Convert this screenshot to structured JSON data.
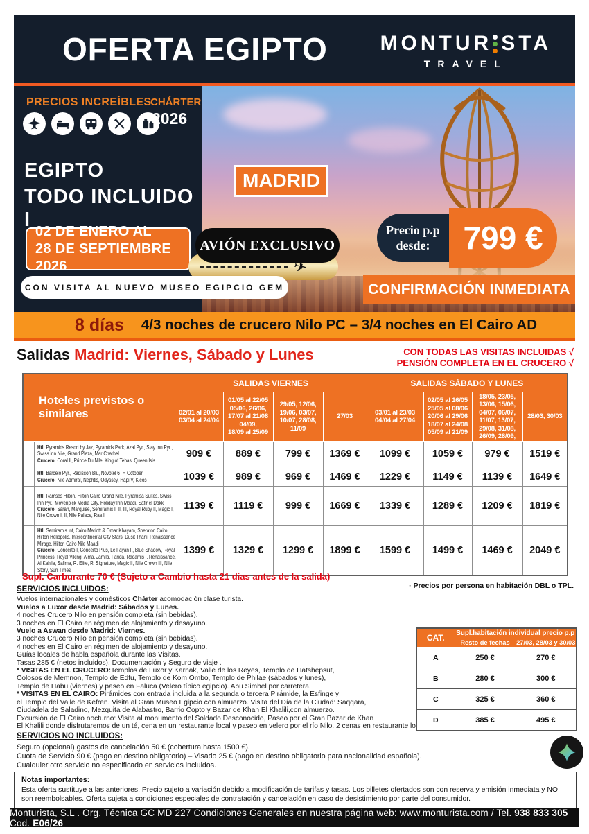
{
  "header": {
    "title": "OFERTA EGIPTO",
    "brand_part1": "MONTUR",
    "brand_part2": "STA",
    "brand_sub": "TRAVEL"
  },
  "hero": {
    "precios": "PRECIOS INCREÍBLES",
    "charter": "CHÁRTER",
    "year": "2026",
    "icon_names": [
      "plane-icon",
      "bed-icon",
      "bus-icon",
      "cutlery-icon",
      "luggage-icon"
    ],
    "headline_line1": "EGIPTO",
    "headline_line2": "TODO INCLUIDO I",
    "city_badge": "MADRID",
    "dates_line1": "02 DE ENERO AL",
    "dates_line2": "28 DE SEPTIEMBRE 2026",
    "avion": "AVIÓN EXCLUSIVO",
    "plane_glyph": "✈",
    "museo": "CON VISITA AL NUEVO MUSEO EGIPCIO GEM",
    "price_label_line1": "Precio p.p",
    "price_label_line2": "desde:",
    "price": "799 €",
    "confirm": "CONFIRMACIÓN INMEDIATA"
  },
  "duration_bar": {
    "days": "8 días",
    "description": "4/3 noches de crucero Nilo PC – 3/4 noches en El Cairo AD"
  },
  "salidas": {
    "label": "Salidas ",
    "value": "Madrid: Viernes, Sábado y Lunes",
    "note1": "CON TODAS LAS VISITAS INCLUIDAS √",
    "note2": "PENSIÓN COMPLETA EN EL CRUCERO √"
  },
  "price_table": {
    "hotel_header": "Hoteles previstos o similares",
    "group1": "SALIDAS VIERNES",
    "group2": "SALIDAS SÁBADO Y LUNES",
    "columns": [
      "02/01 al 20/03\n03/04 al 24/04",
      "01/05 al 22/05\n05/06, 26/06,\n17/07 al 21/08\n04/09,\n18/09 al 25/09",
      "29/05, 12/06,\n19/06, 03/07,\n10/07, 28/08,\n11/09",
      "27/03",
      "03/01 al 23/03\n04/04 al 27/04",
      "02/05 al 16/05\n25/05 al 08/06\n20/06 al 29/06\n18/07 al 24/08\n05/09 al 21/09",
      "18/05, 23/05,\n13/06, 15/06,\n04/07, 06/07,\n11/07, 13/07,\n29/08, 31/08,\n26/09, 28/09,",
      "28/03, 30/03"
    ],
    "rows": [
      {
        "cat": "A",
        "htl": [
          {
            "t": "Htl:",
            "b": 1
          },
          {
            "t": " Pyramids Resort by Jaz, Pyramids Park, Azal Pyr., Stay Inn Pyr., Swiss inn Nile, Grand Plaza, Mar Charbel"
          }
        ],
        "crucero": [
          {
            "t": "Crucero:",
            "b": 1
          },
          {
            "t": " Coral II, Prince Du Nile, King of Tebas, Queen Isis"
          }
        ],
        "prices": [
          "909 €",
          "889 €",
          "799 €",
          "1369 €",
          "1099 €",
          "1059 €",
          "979 €",
          "1519 €"
        ]
      },
      {
        "cat": "B",
        "htl": [
          {
            "t": "Htl:",
            "b": 1
          },
          {
            "t": " Barcelo Pyr., Radisson Blu, Novotel 6TH October"
          }
        ],
        "crucero": [
          {
            "t": "Crucero:",
            "b": 1
          },
          {
            "t": " Nile Admiral, Nephtis, Odyssey, Hapi V,  Kleos"
          }
        ],
        "prices": [
          "1039 €",
          "989 €",
          "969 €",
          "1469 €",
          "1229 €",
          "1149 €",
          "1139 €",
          "1649 €"
        ]
      },
      {
        "cat": "C",
        "htl": [
          {
            "t": "Htl:",
            "b": 1
          },
          {
            "t": " Ramses Hilton, Hilton Cairo Grand Nile, Pyramisa Suites, Swiss Inn Pyr., Movenpick Media City, Holiday Inn Maadi, Safir el Dokki"
          }
        ],
        "crucero": [
          {
            "t": "Crucero:",
            "b": 1
          },
          {
            "t": " Sarah, Marquise, Semiramis I, II, III, Royal Ruby II, Magic I, Nile Crown I, II, Nile Palace, Raa I"
          }
        ],
        "prices": [
          "1139 €",
          "1119 €",
          "999 €",
          "1669 €",
          "1339 €",
          "1289 €",
          "1209 €",
          "1819 €"
        ]
      },
      {
        "cat": "D",
        "htl": [
          {
            "t": "Htl:",
            "b": 1
          },
          {
            "t": " Semiramis Int, Cairo Mariott & Omar Khayam, Sheraton Cairo, Hilton Heliopolis, Intercontinental City Stars, Dusit Thani, Renaissance Mirage, Hilton Cairo Nile Maadi"
          }
        ],
        "crucero": [
          {
            "t": "Crucero:",
            "b": 1
          },
          {
            "t": " Concerto I, Concerto Plus, Le Fayan II, Blue Shadow, Royal Princess, Royal Viking, Alma, Jamila, Farida, Radamis I, Renaissance, Al Kahila, Salima, R. Elite, R. Signature, Magic II, Nile Crown III, Nile Story, Sun Times"
          }
        ],
        "prices": [
          "1399 €",
          "1329 €",
          "1299 €",
          "1899 €",
          "1599 €",
          "1499 €",
          "1469 €",
          "2049 €"
        ]
      }
    ]
  },
  "supplement_note": "Supl. Carburante 70 € (Sujeto a Cambio hasta 21 dias antes de la salida)",
  "dbl_note": "· Precios por persona en habitación DBL o TPL.",
  "included": {
    "title": "SERVICIOS INCLUIDOS:",
    "lines": [
      [
        {
          "t": "Vuelos internacionales y domésticos "
        },
        {
          "t": "Chárter",
          "b": 1
        },
        {
          "t": " acomodación clase turista."
        }
      ],
      [
        {
          "t": "Vuelos a Luxor desde Madrid: Sábados y Lunes.",
          "b": 1
        }
      ],
      [
        {
          "t": "4 noches Crucero Nilo en pensión completa (sin bebidas)."
        }
      ],
      [
        {
          "t": "3 noches en El Cairo en régimen de alojamiento y desayuno."
        }
      ],
      [
        {
          "t": "Vuelo a Aswan desde Madrid: Viernes.",
          "b": 1
        }
      ],
      [
        {
          "t": "3 noches Crucero Nilo en pensión completa (sin bebidas)."
        }
      ],
      [
        {
          "t": "4 noches en El Cairo en régimen de alojamiento y desayuno."
        }
      ],
      [
        {
          "t": "Guías locales de habla española durante las Visitas."
        }
      ],
      [
        {
          "t": "Tasas 285 € (netos incluidos). Documentación y Seguro de viaje ."
        }
      ],
      [
        {
          "t": "* VISITAS EN EL CRUCERO:",
          "b": 1
        },
        {
          "t": "Templos de Luxor y Karnak, Valle de los Reyes, Templo de Hatshepsut,"
        }
      ],
      [
        {
          "t": "Colosos de Memnon, Templo de Edfu, Templo de Kom Ombo, Templo de Philae (sábados y lunes),"
        }
      ],
      [
        {
          "t": "Templo de Habu (viernes) y paseo en Faluca (Velero típico egipcio). Abu Simbel por carretera."
        }
      ],
      [
        {
          "t": "* VISITAS EN EL CAIRO: ",
          "b": 1
        },
        {
          "t": "Pirámides con entrada incluida a la segunda o tercera Pirámide, la Esfinge y"
        }
      ],
      [
        {
          "t": "el Templo del Valle de Kefren. Visita al Gran Museo Egipcio con almuerzo. Visita del Día de la Ciudad: Saqqara,"
        }
      ],
      [
        {
          "t": "Ciudadela de Saladino, Mezquita de Alabastro, Barrio Copto y Bazar de Khan El Khalili,con almuerzo."
        }
      ],
      [
        {
          "t": "Excursión de El Cairo nocturno: Visita al monumento del Soldado Desconocido, Paseo por el Gran Bazar de Khan"
        }
      ],
      [
        {
          "t": "El Khalili donde disfrutaremos de un té, cena en un restaurante local y paseo en velero por el río Nilo. 2 cenas en restaurante local."
        }
      ]
    ]
  },
  "single_supplement": {
    "cat_label": "CAT.",
    "header": "Supl.habitación individual precio p.p",
    "col_rest": "Resto de fechas",
    "col_special": "27/03, 28/03 y 30/03",
    "rows": [
      {
        "cat": "A",
        "rest": "250 €",
        "special": "270 €"
      },
      {
        "cat": "B",
        "rest": "280 €",
        "special": "300 €"
      },
      {
        "cat": "C",
        "rest": "325 €",
        "special": "360 €"
      },
      {
        "cat": "D",
        "rest": "385 €",
        "special": "495 €"
      }
    ]
  },
  "not_included": {
    "title": "SERVICIOS NO INCLUIDOS:",
    "lines": [
      "Seguro (opcional) gastos de cancelación 50 € (cobertura hasta 1500 €).",
      "Cuota de Servicio 90 € (pago en destino obligatorio) – Visado 25 € (pago en destino obligatorio para nacionalidad española).",
      "Cualquier otro servicio no especificado en servicios incluidos."
    ]
  },
  "notes": {
    "title": "Notas importantes:",
    "text": "Esta oferta sustituye a las anteriores. Precio sujeto a variación debido a modificación de tarifas y tasas. Los billetes ofertados son con reserva y emisión inmediata y NO son reembolsables. Oferta sujeta a condiciones especiales de contratación y cancelación en caso de desistimiento por parte del consumidor."
  },
  "footer": {
    "segments": [
      {
        "t": "Monturista, S.L . Org. Técnica GC  MD 227  Condiciones Generales en nuestra página web: www.monturista.com  / Tel. "
      },
      {
        "t": "938 833 305",
        "b": 1
      },
      {
        "t": "      Cod. "
      },
      {
        "t": "E06/26",
        "b": 1
      }
    ]
  },
  "colors": {
    "navy": "#141E2C",
    "orange": "#EE7123",
    "bar_orange": "#F7941D",
    "accent_line": "#F15A22",
    "red": "#E30613",
    "maroon": "#8F1A0A",
    "logo_green": "#61B346",
    "logo_orange": "#EF7D00"
  }
}
